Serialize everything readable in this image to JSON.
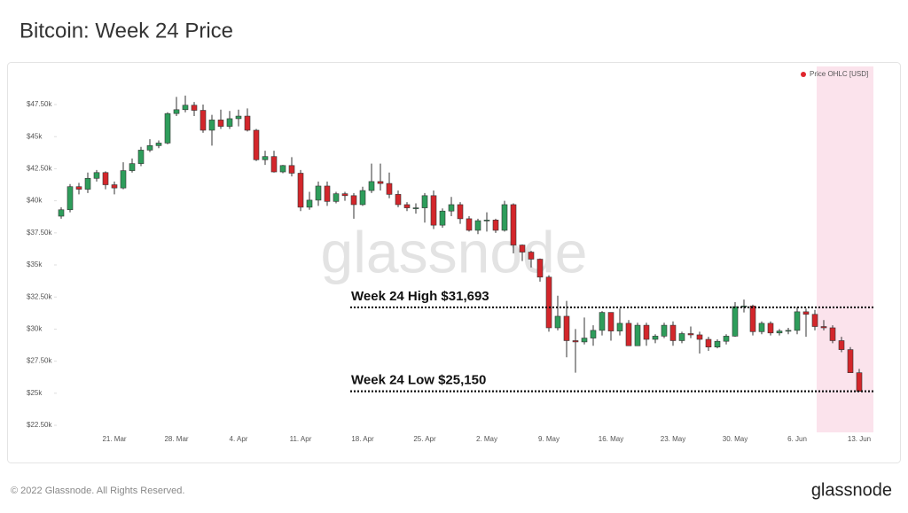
{
  "chart_data": {
    "type": "candlestick",
    "title": "Bitcoin: Week 24 Price",
    "watermark": "glassnode",
    "footer": "© 2022 Glassnode. All Rights Reserved.",
    "brand": "glassnode",
    "categories": [
      null,
      null,
      null,
      null,
      null,
      null,
      "21. Mar",
      null,
      null,
      null,
      null,
      null,
      null,
      "28. Mar",
      null,
      null,
      null,
      null,
      null,
      null,
      "4. Apr",
      null,
      null,
      null,
      null,
      null,
      null,
      "11. Apr",
      null,
      null,
      null,
      null,
      null,
      null,
      "18. Apr",
      null,
      null,
      null,
      null,
      null,
      null,
      "25. Apr",
      null,
      null,
      null,
      null,
      null,
      null,
      "2. May",
      null,
      null,
      null,
      null,
      null,
      null,
      "9. May",
      null,
      null,
      null,
      null,
      null,
      null,
      "16. May",
      null,
      null,
      null,
      null,
      null,
      null,
      "23. May",
      null,
      null,
      null,
      null,
      null,
      null,
      "30. May",
      null,
      null,
      null,
      null,
      null,
      null,
      "6. Jun",
      null,
      null,
      null,
      null,
      null,
      null,
      "13. Jun"
    ],
    "series": [
      {
        "name": "Price OHLC [USD]",
        "color": "#e0262d",
        "up_color": "#2e9d5b",
        "down_color": "#d3262b",
        "open": [
          38800,
          39300,
          41100,
          40900,
          41750,
          42200,
          41250,
          41000,
          42350,
          42900,
          43950,
          44300,
          44500,
          46800,
          47100,
          47450,
          47050,
          45500,
          46300,
          45800,
          46400,
          46600,
          45500,
          43200,
          43450,
          42250,
          42750,
          42150,
          39500,
          40050,
          41150,
          39950,
          40550,
          40400,
          39700,
          40800,
          41500,
          41350,
          40500,
          39700,
          39450,
          39450,
          40400,
          38100,
          39200,
          39700,
          38600,
          37700,
          38450,
          38500,
          37700,
          39700,
          36550,
          36000,
          35450,
          34050,
          30100,
          31000,
          29100,
          29000,
          29300,
          29900,
          31300,
          29850,
          30450,
          28700,
          30300,
          29200,
          29450,
          30300,
          29100,
          29650,
          29550,
          29200,
          28600,
          29050,
          29450,
          31750,
          31800,
          29800,
          30450,
          29700,
          29850,
          29900,
          31350,
          31150,
          30200,
          30100,
          29100,
          28400,
          26600
        ],
        "high": [
          39500,
          41300,
          41400,
          42200,
          42400,
          42300,
          41500,
          43000,
          43300,
          44200,
          44800,
          44700,
          46900,
          48100,
          48200,
          47700,
          47500,
          46700,
          47100,
          47000,
          47100,
          47200,
          45600,
          43900,
          43900,
          42800,
          43400,
          42400,
          40700,
          41500,
          41500,
          40700,
          40700,
          40600,
          41100,
          42900,
          42900,
          42200,
          40800,
          39900,
          39800,
          40600,
          40800,
          39400,
          40300,
          39900,
          38800,
          38600,
          39100,
          38600,
          40000,
          39800,
          36600,
          36100,
          35500,
          34200,
          32600,
          32200,
          30000,
          30900,
          30300,
          31400,
          31300,
          31600,
          30700,
          30500,
          30500,
          29600,
          30500,
          30600,
          29800,
          30200,
          29800,
          29400,
          29200,
          29600,
          32100,
          32300,
          31900,
          30600,
          30600,
          30000,
          30100,
          31700,
          31600,
          31500,
          30700,
          30300,
          29400,
          28600,
          26900
        ],
        "low": [
          38600,
          39100,
          40500,
          40600,
          41500,
          40900,
          40500,
          40900,
          42200,
          42700,
          43800,
          44100,
          44400,
          46600,
          46900,
          46600,
          45300,
          44300,
          45600,
          45600,
          45800,
          45400,
          43100,
          42800,
          42200,
          42150,
          41900,
          39200,
          39300,
          39600,
          39600,
          39800,
          40000,
          38600,
          39600,
          40600,
          40800,
          40200,
          39500,
          39200,
          39000,
          38300,
          37800,
          37900,
          38800,
          38200,
          37600,
          37400,
          37600,
          37500,
          37600,
          35900,
          35300,
          34800,
          33700,
          29800,
          29900,
          27800,
          26600,
          28800,
          28700,
          29500,
          29100,
          29500,
          28700,
          28700,
          28700,
          28900,
          29300,
          28700,
          28900,
          29300,
          28100,
          28300,
          28500,
          28800,
          29400,
          31300,
          29500,
          29600,
          29500,
          29500,
          29600,
          29600,
          29400,
          29900,
          29900,
          28900,
          28200,
          26600,
          25150
        ],
        "close": [
          39300,
          41100,
          40900,
          41750,
          42200,
          41250,
          41000,
          42350,
          42900,
          43950,
          44300,
          44500,
          46800,
          47100,
          47450,
          47050,
          45500,
          46300,
          45800,
          46400,
          46600,
          45500,
          43200,
          43450,
          42250,
          42750,
          42150,
          39500,
          40050,
          41150,
          39950,
          40550,
          40400,
          39700,
          40800,
          41500,
          41350,
          40500,
          39700,
          39450,
          39450,
          40400,
          38100,
          39200,
          39700,
          38600,
          37700,
          38450,
          38500,
          37700,
          39700,
          36550,
          36000,
          35450,
          34050,
          30100,
          31000,
          29100,
          29000,
          29300,
          29900,
          31300,
          29850,
          30450,
          28700,
          30300,
          29200,
          29450,
          30300,
          29100,
          29650,
          29550,
          29200,
          28600,
          29050,
          29450,
          31750,
          31800,
          29800,
          30450,
          29700,
          29850,
          29900,
          31350,
          31150,
          30200,
          30100,
          29100,
          28400,
          26600,
          25150
        ]
      }
    ],
    "ylim": [
      21950,
      49780
    ],
    "yticks": [
      {
        "value": 22500,
        "label": "$22.50k"
      },
      {
        "value": 25000,
        "label": "$25k"
      },
      {
        "value": 27500,
        "label": "$27.50k"
      },
      {
        "value": 30000,
        "label": "$30k"
      },
      {
        "value": 32500,
        "label": "$32.50k"
      },
      {
        "value": 35000,
        "label": "$35k"
      },
      {
        "value": 37500,
        "label": "$37.50k"
      },
      {
        "value": 40000,
        "label": "$40k"
      },
      {
        "value": 42500,
        "label": "$42.50k"
      },
      {
        "value": 45000,
        "label": "$45k"
      },
      {
        "value": 47500,
        "label": "$47.50k"
      }
    ],
    "annotations": [
      {
        "text": "Week 24 High $31,693",
        "value": 31693
      },
      {
        "text": "Week 24 Low $25,150",
        "value": 25150
      }
    ],
    "legend": "top-right"
  }
}
